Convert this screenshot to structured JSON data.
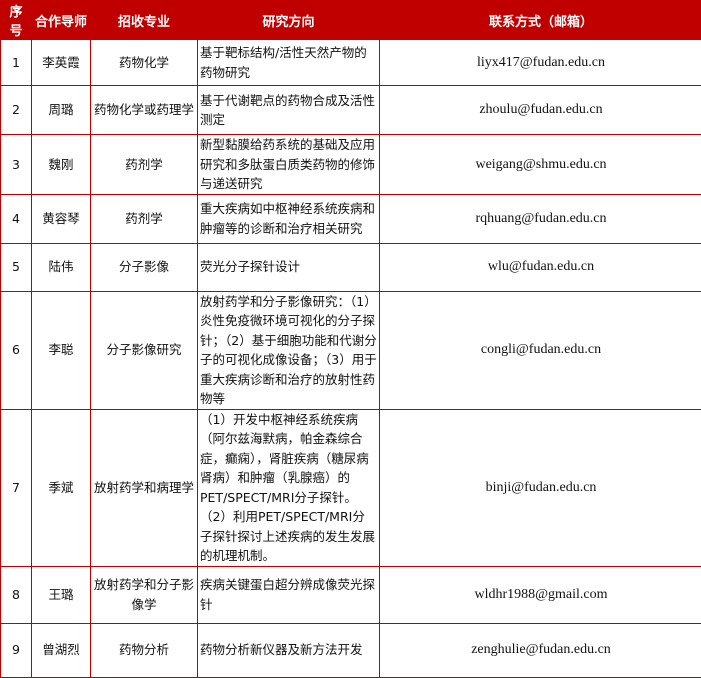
{
  "header": {
    "index": "序号",
    "supervisor": "合作导师",
    "major": "招收专业",
    "research": "研究方向",
    "contact": "联系方式（邮箱）"
  },
  "colors": {
    "header_bg": "#c00000",
    "border": "#c00000"
  },
  "rows": [
    {
      "index": "1",
      "supervisor": "李英霞",
      "major": "药物化学",
      "research": "基于靶标结构/活性天然产物的药物研究",
      "email": "liyx417@fudan.edu.cn"
    },
    {
      "index": "2",
      "supervisor": "周璐",
      "major": "药物化学或药理学",
      "research": "基于代谢靶点的药物合成及活性测定",
      "email": "zhoulu@fudan.edu.cn"
    },
    {
      "index": "3",
      "supervisor": "魏刚",
      "major": "药剂学",
      "research": "新型黏膜给药系统的基础及应用研究和多肽蛋白质类药物的修饰与递送研究",
      "email": "weigang@shmu.edu.cn"
    },
    {
      "index": "4",
      "supervisor": "黄容琴",
      "major": "药剂学",
      "research": "重大疾病如中枢神经系统疾病和肿瘤等的诊断和治疗相关研究",
      "email": "rqhuang@fudan.edu.cn"
    },
    {
      "index": "5",
      "supervisor": "陆伟",
      "major": "分子影像",
      "research": "荧光分子探针设计",
      "email": "wlu@fudan.edu.cn"
    },
    {
      "index": "6",
      "supervisor": "李聪",
      "major": "分子影像研究",
      "research": "放射药学和分子影像研究：（1）炎性免疫微环境可视化的分子探针；（2）基于细胞功能和代谢分子的可视化成像设备；（3）用于重大疾病诊断和治疗的放射性药物等",
      "email": "congli@fudan.edu.cn"
    },
    {
      "index": "7",
      "supervisor": "季斌",
      "major": "放射药学和病理学",
      "research": "（1）开发中枢神经系统疾病（阿尔兹海默病，帕金森综合症，癫痫），肾脏疾病（糖尿病肾病）和肿瘤（乳腺癌）的PET/SPECT/MRI分子探针。（2）利用PET/SPECT/MRI分子探针探讨上述疾病的发生发展的机理机制。",
      "email": "binji@fudan.edu.cn"
    },
    {
      "index": "8",
      "supervisor": "王璐",
      "major": "放射药学和分子影像学",
      "research": "疾病关键蛋白超分辨成像荧光探针",
      "email": "wldhr1988@gmail.com"
    },
    {
      "index": "9",
      "supervisor": "曾湖烈",
      "major": "药物分析",
      "research": "药物分析新仪器及新方法开发",
      "email": "zenghulie@fudan.edu.cn"
    }
  ]
}
